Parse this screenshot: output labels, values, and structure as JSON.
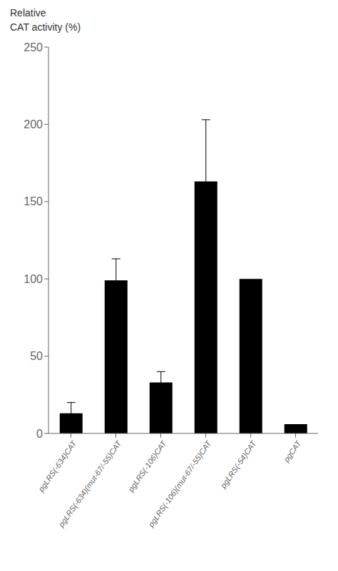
{
  "chart_data": {
    "type": "bar",
    "ylabel": [
      "Relative",
      "CAT activity (%)"
    ],
    "categories": [
      "pgLRS(-634)CAT",
      "pgLRS(-634)(mut-67/-55)CAT",
      "pgLRS(-106)CAT",
      "pgLRS(-106)(mut-67/-55)CAT",
      "pgLRS(-54)CAT",
      "pgCAT"
    ],
    "values": [
      13,
      99,
      33,
      163,
      100,
      6
    ],
    "errors": [
      7,
      14,
      7,
      40,
      0,
      0
    ],
    "color": "#000000",
    "ylim": [
      0,
      250
    ],
    "yticks": [
      0,
      50,
      100,
      150,
      200,
      250
    ],
    "grid": false
  }
}
